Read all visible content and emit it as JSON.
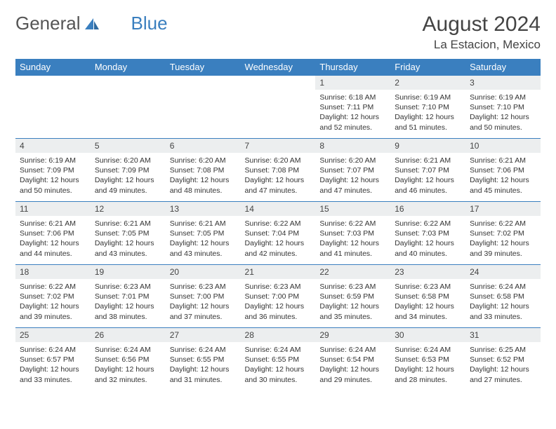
{
  "brand": {
    "text1": "General",
    "text2": "Blue"
  },
  "title": "August 2024",
  "location": "La Estacion, Mexico",
  "colors": {
    "header_bg": "#3a7fbf",
    "header_text": "#ffffff",
    "daynum_bg": "#eceeef",
    "border": "#3a7fbf",
    "body_text": "#333333"
  },
  "typography": {
    "title_fontsize": 30,
    "location_fontsize": 17,
    "header_fontsize": 13,
    "daynum_fontsize": 12,
    "content_fontsize": 10.5
  },
  "weekday_headers": [
    "Sunday",
    "Monday",
    "Tuesday",
    "Wednesday",
    "Thursday",
    "Friday",
    "Saturday"
  ],
  "weeks": [
    [
      {
        "day": "",
        "sunrise": "",
        "sunset": "",
        "daylight": ""
      },
      {
        "day": "",
        "sunrise": "",
        "sunset": "",
        "daylight": ""
      },
      {
        "day": "",
        "sunrise": "",
        "sunset": "",
        "daylight": ""
      },
      {
        "day": "",
        "sunrise": "",
        "sunset": "",
        "daylight": ""
      },
      {
        "day": "1",
        "sunrise": "Sunrise: 6:18 AM",
        "sunset": "Sunset: 7:11 PM",
        "daylight": "Daylight: 12 hours and 52 minutes."
      },
      {
        "day": "2",
        "sunrise": "Sunrise: 6:19 AM",
        "sunset": "Sunset: 7:10 PM",
        "daylight": "Daylight: 12 hours and 51 minutes."
      },
      {
        "day": "3",
        "sunrise": "Sunrise: 6:19 AM",
        "sunset": "Sunset: 7:10 PM",
        "daylight": "Daylight: 12 hours and 50 minutes."
      }
    ],
    [
      {
        "day": "4",
        "sunrise": "Sunrise: 6:19 AM",
        "sunset": "Sunset: 7:09 PM",
        "daylight": "Daylight: 12 hours and 50 minutes."
      },
      {
        "day": "5",
        "sunrise": "Sunrise: 6:20 AM",
        "sunset": "Sunset: 7:09 PM",
        "daylight": "Daylight: 12 hours and 49 minutes."
      },
      {
        "day": "6",
        "sunrise": "Sunrise: 6:20 AM",
        "sunset": "Sunset: 7:08 PM",
        "daylight": "Daylight: 12 hours and 48 minutes."
      },
      {
        "day": "7",
        "sunrise": "Sunrise: 6:20 AM",
        "sunset": "Sunset: 7:08 PM",
        "daylight": "Daylight: 12 hours and 47 minutes."
      },
      {
        "day": "8",
        "sunrise": "Sunrise: 6:20 AM",
        "sunset": "Sunset: 7:07 PM",
        "daylight": "Daylight: 12 hours and 47 minutes."
      },
      {
        "day": "9",
        "sunrise": "Sunrise: 6:21 AM",
        "sunset": "Sunset: 7:07 PM",
        "daylight": "Daylight: 12 hours and 46 minutes."
      },
      {
        "day": "10",
        "sunrise": "Sunrise: 6:21 AM",
        "sunset": "Sunset: 7:06 PM",
        "daylight": "Daylight: 12 hours and 45 minutes."
      }
    ],
    [
      {
        "day": "11",
        "sunrise": "Sunrise: 6:21 AM",
        "sunset": "Sunset: 7:06 PM",
        "daylight": "Daylight: 12 hours and 44 minutes."
      },
      {
        "day": "12",
        "sunrise": "Sunrise: 6:21 AM",
        "sunset": "Sunset: 7:05 PM",
        "daylight": "Daylight: 12 hours and 43 minutes."
      },
      {
        "day": "13",
        "sunrise": "Sunrise: 6:21 AM",
        "sunset": "Sunset: 7:05 PM",
        "daylight": "Daylight: 12 hours and 43 minutes."
      },
      {
        "day": "14",
        "sunrise": "Sunrise: 6:22 AM",
        "sunset": "Sunset: 7:04 PM",
        "daylight": "Daylight: 12 hours and 42 minutes."
      },
      {
        "day": "15",
        "sunrise": "Sunrise: 6:22 AM",
        "sunset": "Sunset: 7:03 PM",
        "daylight": "Daylight: 12 hours and 41 minutes."
      },
      {
        "day": "16",
        "sunrise": "Sunrise: 6:22 AM",
        "sunset": "Sunset: 7:03 PM",
        "daylight": "Daylight: 12 hours and 40 minutes."
      },
      {
        "day": "17",
        "sunrise": "Sunrise: 6:22 AM",
        "sunset": "Sunset: 7:02 PM",
        "daylight": "Daylight: 12 hours and 39 minutes."
      }
    ],
    [
      {
        "day": "18",
        "sunrise": "Sunrise: 6:22 AM",
        "sunset": "Sunset: 7:02 PM",
        "daylight": "Daylight: 12 hours and 39 minutes."
      },
      {
        "day": "19",
        "sunrise": "Sunrise: 6:23 AM",
        "sunset": "Sunset: 7:01 PM",
        "daylight": "Daylight: 12 hours and 38 minutes."
      },
      {
        "day": "20",
        "sunrise": "Sunrise: 6:23 AM",
        "sunset": "Sunset: 7:00 PM",
        "daylight": "Daylight: 12 hours and 37 minutes."
      },
      {
        "day": "21",
        "sunrise": "Sunrise: 6:23 AM",
        "sunset": "Sunset: 7:00 PM",
        "daylight": "Daylight: 12 hours and 36 minutes."
      },
      {
        "day": "22",
        "sunrise": "Sunrise: 6:23 AM",
        "sunset": "Sunset: 6:59 PM",
        "daylight": "Daylight: 12 hours and 35 minutes."
      },
      {
        "day": "23",
        "sunrise": "Sunrise: 6:23 AM",
        "sunset": "Sunset: 6:58 PM",
        "daylight": "Daylight: 12 hours and 34 minutes."
      },
      {
        "day": "24",
        "sunrise": "Sunrise: 6:24 AM",
        "sunset": "Sunset: 6:58 PM",
        "daylight": "Daylight: 12 hours and 33 minutes."
      }
    ],
    [
      {
        "day": "25",
        "sunrise": "Sunrise: 6:24 AM",
        "sunset": "Sunset: 6:57 PM",
        "daylight": "Daylight: 12 hours and 33 minutes."
      },
      {
        "day": "26",
        "sunrise": "Sunrise: 6:24 AM",
        "sunset": "Sunset: 6:56 PM",
        "daylight": "Daylight: 12 hours and 32 minutes."
      },
      {
        "day": "27",
        "sunrise": "Sunrise: 6:24 AM",
        "sunset": "Sunset: 6:55 PM",
        "daylight": "Daylight: 12 hours and 31 minutes."
      },
      {
        "day": "28",
        "sunrise": "Sunrise: 6:24 AM",
        "sunset": "Sunset: 6:55 PM",
        "daylight": "Daylight: 12 hours and 30 minutes."
      },
      {
        "day": "29",
        "sunrise": "Sunrise: 6:24 AM",
        "sunset": "Sunset: 6:54 PM",
        "daylight": "Daylight: 12 hours and 29 minutes."
      },
      {
        "day": "30",
        "sunrise": "Sunrise: 6:24 AM",
        "sunset": "Sunset: 6:53 PM",
        "daylight": "Daylight: 12 hours and 28 minutes."
      },
      {
        "day": "31",
        "sunrise": "Sunrise: 6:25 AM",
        "sunset": "Sunset: 6:52 PM",
        "daylight": "Daylight: 12 hours and 27 minutes."
      }
    ]
  ]
}
